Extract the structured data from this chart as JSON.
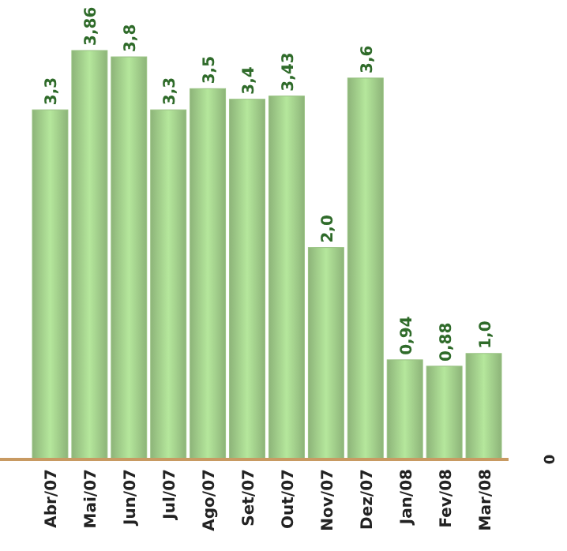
{
  "chart_data": {
    "type": "bar",
    "categories": [
      "Abr/07",
      "Mai/07",
      "Jun/07",
      "Jul/07",
      "Ago/07",
      "Set/07",
      "Out/07",
      "Nov/07",
      "Dez/07",
      "Jan/08",
      "Fev/08",
      "Mar/08"
    ],
    "values": [
      3.3,
      3.86,
      3.8,
      3.3,
      3.5,
      3.4,
      3.43,
      2.0,
      3.6,
      0.94,
      0.88,
      1.0
    ],
    "value_labels": [
      "3,3",
      "3,86",
      "3,8",
      "3,3",
      "3,5",
      "3,4",
      "3,43",
      "2,0",
      "3,6",
      "0,94",
      "0,88",
      "1,0"
    ],
    "color": "#a3d08c",
    "annotations": [
      "0"
    ]
  }
}
